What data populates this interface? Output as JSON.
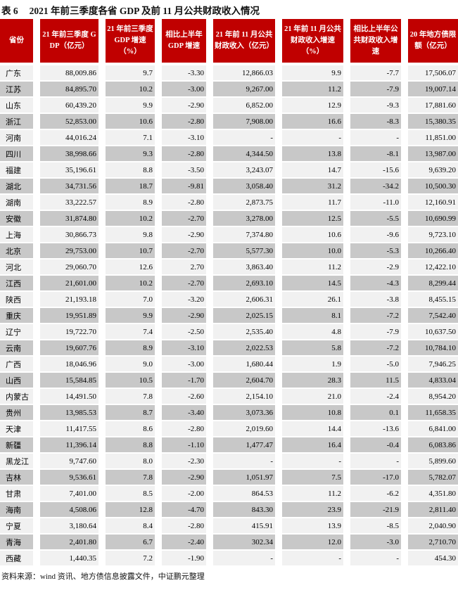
{
  "title": {
    "tag": "表 6",
    "text": "2021 年前三季度各省 GDP 及前 11 月公共财政收入情况"
  },
  "colors": {
    "header_bg": "#C00000",
    "header_text": "#FFFFFF",
    "row_light": "#F1F1F1",
    "row_dark": "#C8C8C8"
  },
  "table": {
    "columns": [
      "省份",
      "21 年前三季度 GDP（亿元）",
      "21 年前三季度 GDP 增速（%）",
      "相比上半年 GDP 增速",
      "21 年前 11 月公共财政收入（亿元）",
      "21 年前 11 月公共财政收入增速（%）",
      "相比上半年公共财政收入增速",
      "20 年地方债限额（亿元）"
    ],
    "rows": [
      [
        "广东",
        "88,009.86",
        "9.7",
        "-3.30",
        "12,866.03",
        "9.9",
        "-7.7",
        "17,506.07"
      ],
      [
        "江苏",
        "84,895.70",
        "10.2",
        "-3.00",
        "9,267.00",
        "11.2",
        "-7.9",
        "19,007.14"
      ],
      [
        "山东",
        "60,439.20",
        "9.9",
        "-2.90",
        "6,852.00",
        "12.9",
        "-9.3",
        "17,881.60"
      ],
      [
        "浙江",
        "52,853.00",
        "10.6",
        "-2.80",
        "7,908.00",
        "16.6",
        "-8.3",
        "15,380.35"
      ],
      [
        "河南",
        "44,016.24",
        "7.1",
        "-3.10",
        "-",
        "-",
        "-",
        "11,851.00"
      ],
      [
        "四川",
        "38,998.66",
        "9.3",
        "-2.80",
        "4,344.50",
        "13.8",
        "-8.1",
        "13,987.00"
      ],
      [
        "福建",
        "35,196.61",
        "8.8",
        "-3.50",
        "3,243.07",
        "14.7",
        "-15.6",
        "9,639.20"
      ],
      [
        "湖北",
        "34,731.56",
        "18.7",
        "-9.81",
        "3,058.40",
        "31.2",
        "-34.2",
        "10,500.30"
      ],
      [
        "湖南",
        "33,222.57",
        "8.9",
        "-2.80",
        "2,873.75",
        "11.7",
        "-11.0",
        "12,160.91"
      ],
      [
        "安徽",
        "31,874.80",
        "10.2",
        "-2.70",
        "3,278.00",
        "12.5",
        "-5.5",
        "10,690.99"
      ],
      [
        "上海",
        "30,866.73",
        "9.8",
        "-2.90",
        "7,374.80",
        "10.6",
        "-9.6",
        "9,723.10"
      ],
      [
        "北京",
        "29,753.00",
        "10.7",
        "-2.70",
        "5,577.30",
        "10.0",
        "-5.3",
        "10,266.40"
      ],
      [
        "河北",
        "29,060.70",
        "12.6",
        "2.70",
        "3,863.40",
        "11.2",
        "-2.9",
        "12,422.10"
      ],
      [
        "江西",
        "21,601.00",
        "10.2",
        "-2.70",
        "2,693.10",
        "14.5",
        "-4.3",
        "8,299.44"
      ],
      [
        "陕西",
        "21,193.18",
        "7.0",
        "-3.20",
        "2,606.31",
        "26.1",
        "-3.8",
        "8,455.15"
      ],
      [
        "重庆",
        "19,951.89",
        "9.9",
        "-2.90",
        "2,025.15",
        "8.1",
        "-7.2",
        "7,542.40"
      ],
      [
        "辽宁",
        "19,722.70",
        "7.4",
        "-2.50",
        "2,535.40",
        "4.8",
        "-7.9",
        "10,637.50"
      ],
      [
        "云南",
        "19,607.76",
        "8.9",
        "-3.10",
        "2,022.53",
        "5.8",
        "-7.2",
        "10,784.10"
      ],
      [
        "广西",
        "18,046.96",
        "9.0",
        "-3.00",
        "1,680.44",
        "1.9",
        "-5.0",
        "7,946.25"
      ],
      [
        "山西",
        "15,584.85",
        "10.5",
        "-1.70",
        "2,604.70",
        "28.3",
        "11.5",
        "4,833.04"
      ],
      [
        "内蒙古",
        "14,491.50",
        "7.8",
        "-2.60",
        "2,154.10",
        "21.0",
        "-2.4",
        "8,954.20"
      ],
      [
        "贵州",
        "13,985.53",
        "8.7",
        "-3.40",
        "3,073.36",
        "10.8",
        "0.1",
        "11,658.35"
      ],
      [
        "天津",
        "11,417.55",
        "8.6",
        "-2.80",
        "2,019.60",
        "14.4",
        "-13.6",
        "6,841.00"
      ],
      [
        "新疆",
        "11,396.14",
        "8.8",
        "-1.10",
        "1,477.47",
        "16.4",
        "-0.4",
        "6,083.86"
      ],
      [
        "黑龙江",
        "9,747.60",
        "8.0",
        "-2.30",
        "-",
        "-",
        "-",
        "5,899.60"
      ],
      [
        "吉林",
        "9,536.61",
        "7.8",
        "-2.90",
        "1,051.97",
        "7.5",
        "-17.0",
        "5,782.07"
      ],
      [
        "甘肃",
        "7,401.00",
        "8.5",
        "-2.00",
        "864.53",
        "11.2",
        "-6.2",
        "4,351.80"
      ],
      [
        "海南",
        "4,508.06",
        "12.8",
        "-4.70",
        "843.30",
        "23.9",
        "-21.9",
        "2,811.40"
      ],
      [
        "宁夏",
        "3,180.64",
        "8.4",
        "-2.80",
        "415.91",
        "13.9",
        "-8.5",
        "2,040.90"
      ],
      [
        "青海",
        "2,401.80",
        "6.7",
        "-2.40",
        "302.34",
        "12.0",
        "-3.0",
        "2,710.70"
      ],
      [
        "西藏",
        "1,440.35",
        "7.2",
        "-1.90",
        "-",
        "-",
        "-",
        "454.30"
      ]
    ]
  },
  "footer": {
    "source_note": "资料来源：wind 资讯、地方债信息披露文件，中证鹏元整理"
  }
}
